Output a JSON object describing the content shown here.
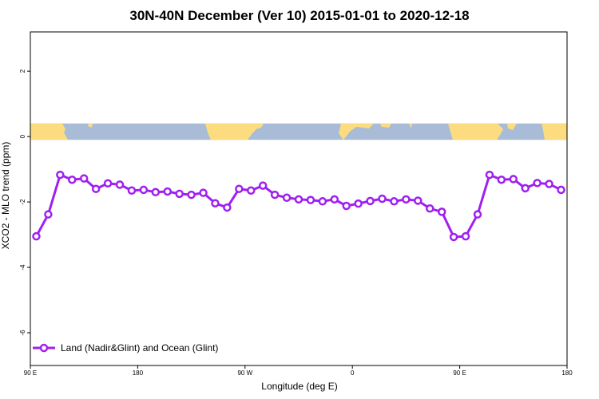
{
  "chart_data": {
    "type": "line",
    "title": "30N-40N December (Ver 10)   2015-01-01 to 2020-12-18",
    "xlabel": "Longitude (deg E)",
    "ylabel": "XCO2 - MLO trend (ppm)",
    "xlim": [
      90,
      540
    ],
    "ylim": [
      -7.0,
      3.2
    ],
    "x_ticks": [
      {
        "value": 90,
        "label": "90 E"
      },
      {
        "value": 180,
        "label": "180"
      },
      {
        "value": 270,
        "label": "90 W"
      },
      {
        "value": 360,
        "label": "0"
      },
      {
        "value": 450,
        "label": "90 E"
      },
      {
        "value": 540,
        "label": "180"
      }
    ],
    "y_ticks": [
      {
        "value": 2,
        "label": "2"
      },
      {
        "value": 0,
        "label": "0"
      },
      {
        "value": -2,
        "label": "-2"
      },
      {
        "value": -4,
        "label": "-4"
      },
      {
        "value": -6,
        "label": "-6"
      }
    ],
    "legend": {
      "position": "bottom-left",
      "entries": [
        "Land (Nadir&Glint) and Ocean (Glint)"
      ]
    },
    "grid": false,
    "map_strip": {
      "y_range": [
        -0.1,
        0.4
      ],
      "ocean_color": "#a8bcd8",
      "land_color": "#fddc80"
    },
    "series": [
      {
        "name": "Land (Nadir&Glint) and Ocean (Glint)",
        "color": "#a020f0",
        "x": [
          95,
          105,
          115,
          125,
          135,
          145,
          155,
          165,
          175,
          185,
          195,
          205,
          215,
          225,
          235,
          245,
          255,
          265,
          275,
          285,
          295,
          305,
          315,
          325,
          335,
          345,
          355,
          365,
          375,
          385,
          395,
          405,
          415,
          425,
          435,
          445,
          455,
          465,
          475,
          485,
          495,
          505,
          515,
          525,
          535
        ],
        "values": [
          -3.05,
          -2.38,
          -1.17,
          -1.32,
          -1.28,
          -1.6,
          -1.43,
          -1.47,
          -1.65,
          -1.63,
          -1.7,
          -1.68,
          -1.75,
          -1.78,
          -1.72,
          -2.04,
          -2.17,
          -1.6,
          -1.65,
          -1.5,
          -1.78,
          -1.87,
          -1.92,
          -1.94,
          -1.98,
          -1.92,
          -2.12,
          -2.05,
          -1.97,
          -1.9,
          -1.98,
          -1.92,
          -1.96,
          -2.2,
          -2.3,
          -3.07,
          -3.05,
          -2.38,
          -1.17,
          -1.32,
          -1.3,
          -1.58,
          -1.42,
          -1.45,
          -1.63
        ]
      }
    ]
  }
}
